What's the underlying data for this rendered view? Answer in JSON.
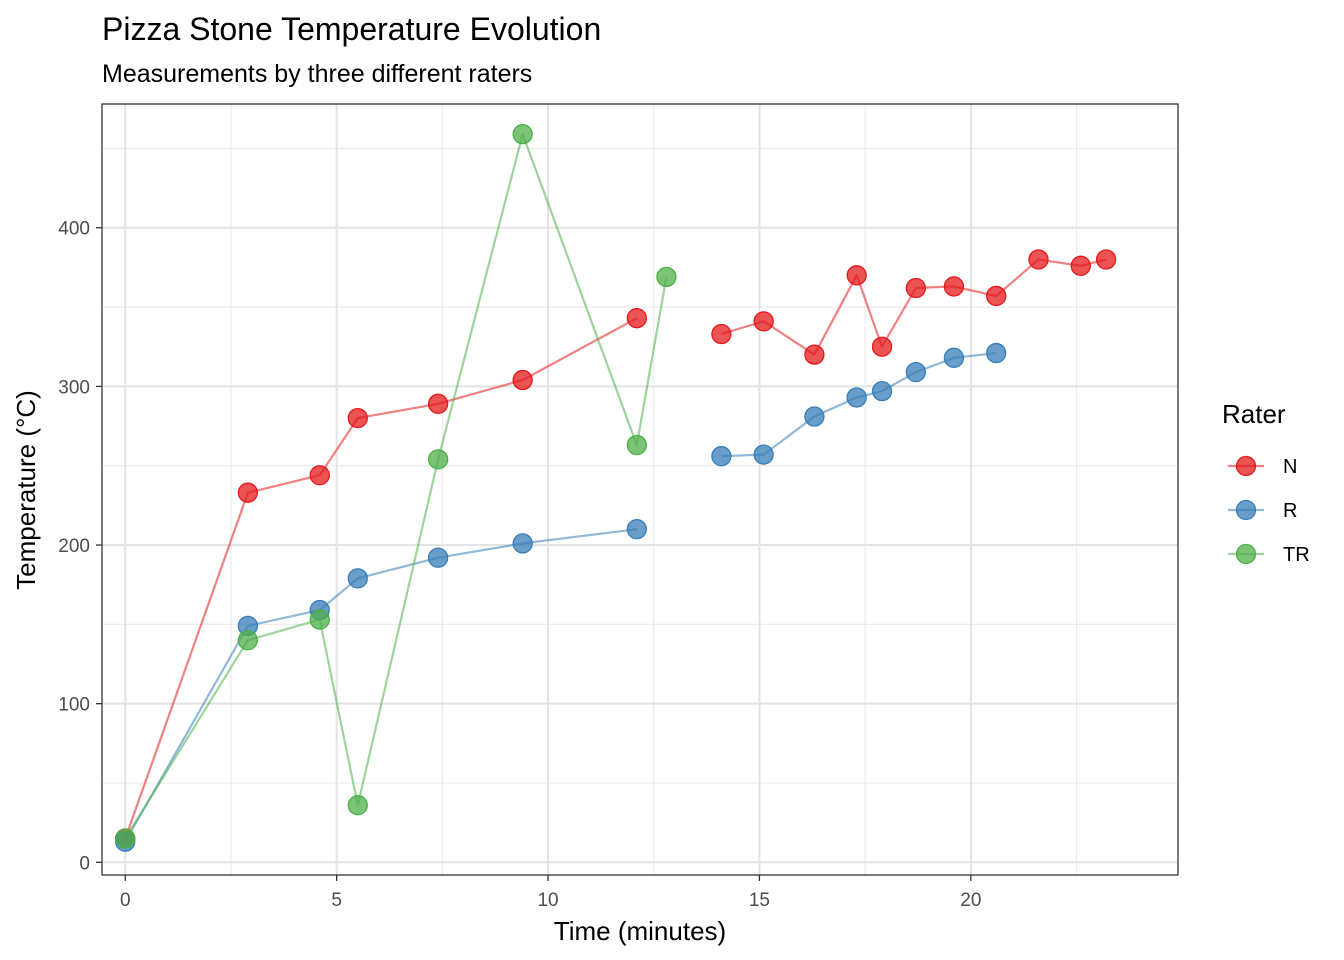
{
  "chart_data": {
    "type": "line",
    "title": "Pizza Stone Temperature Evolution",
    "subtitle": "Measurements by three different raters",
    "xlabel": "Time (minutes)",
    "ylabel": "Temperature (°C)",
    "xlim": [
      -0.55,
      24.9
    ],
    "ylim": [
      -8,
      478
    ],
    "x_ticks": [
      0,
      5,
      10,
      15,
      20
    ],
    "y_ticks": [
      0,
      100,
      200,
      300,
      400
    ],
    "x_minor_ticks": [
      2.5,
      7.5,
      12.5,
      17.5,
      22.5
    ],
    "y_minor_ticks": [
      50,
      150,
      250,
      350,
      450
    ],
    "grid": true,
    "legend": {
      "title": "Rater",
      "position": "right"
    },
    "series": [
      {
        "name": "N",
        "color": "#e41a1c",
        "segments": [
          [
            [
              0,
              15
            ],
            [
              2.9,
              233
            ],
            [
              4.6,
              244
            ],
            [
              5.5,
              280
            ],
            [
              7.4,
              289
            ],
            [
              9.4,
              304
            ],
            [
              12.1,
              343
            ]
          ],
          [
            [
              14.1,
              333
            ],
            [
              15.1,
              341
            ],
            [
              16.3,
              320
            ],
            [
              17.3,
              370
            ],
            [
              17.9,
              325
            ],
            [
              18.7,
              362
            ],
            [
              19.6,
              363
            ],
            [
              20.6,
              357
            ],
            [
              21.6,
              380
            ],
            [
              22.6,
              376
            ],
            [
              23.2,
              380
            ]
          ]
        ]
      },
      {
        "name": "R",
        "color": "#377eb8",
        "segments": [
          [
            [
              0,
              13
            ],
            [
              2.9,
              149
            ],
            [
              4.6,
              159
            ],
            [
              5.5,
              179
            ],
            [
              7.4,
              192
            ],
            [
              9.4,
              201
            ],
            [
              12.1,
              210
            ]
          ],
          [
            [
              14.1,
              256
            ],
            [
              15.1,
              257
            ],
            [
              16.3,
              281
            ],
            [
              17.3,
              293
            ],
            [
              17.9,
              297
            ],
            [
              18.7,
              309
            ],
            [
              19.6,
              318
            ],
            [
              20.6,
              321
            ]
          ]
        ]
      },
      {
        "name": "TR",
        "color": "#4daf4a",
        "segments": [
          [
            [
              0,
              15
            ],
            [
              2.9,
              140
            ],
            [
              4.6,
              153
            ],
            [
              5.5,
              36
            ],
            [
              7.4,
              254
            ],
            [
              9.4,
              459
            ],
            [
              12.1,
              263
            ],
            [
              12.8,
              369
            ]
          ]
        ]
      }
    ]
  }
}
